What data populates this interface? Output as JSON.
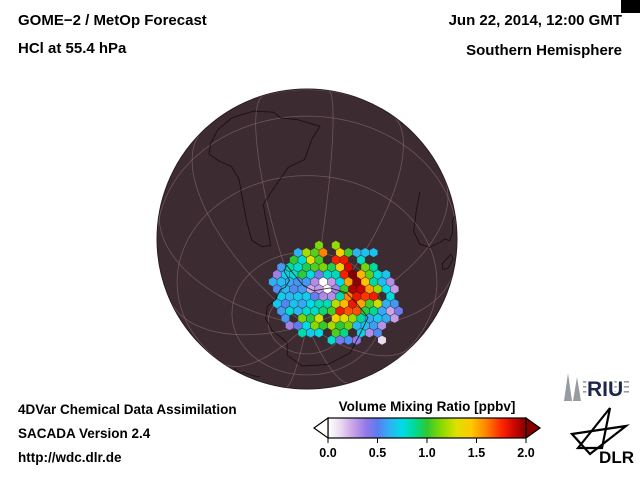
{
  "header": {
    "title_line1": "GOME−2 / MetOp Forecast",
    "title_line2": "HCl at 55.4 hPa",
    "datetime": "Jun 22, 2014, 12:00 GMT",
    "region": "Southern Hemisphere"
  },
  "footer": {
    "credit": "4DVar Chemical Data Assimilation",
    "version": "SACADA Version 2.4",
    "url": "http://wdc.dlr.de"
  },
  "colorbar": {
    "title": "Volume Mixing Ratio [ppbv]",
    "tick_labels": [
      "0.0",
      "0.5",
      "1.0",
      "1.5",
      "2.0"
    ]
  },
  "logos": {
    "riu_label": "RIU",
    "dlr_label": "DLR"
  },
  "map": {
    "background_color": "#3c2b30",
    "grid_color": "#97797f",
    "coast_color": "#17090d"
  },
  "chart_data": {
    "type": "heatmap",
    "title": "GOME−2 / MetOp Forecast — HCl at 55.4 hPa",
    "timestamp": "Jun 22, 2014, 12:00 GMT",
    "region": "Southern Hemisphere",
    "projection": "orthographic hemisphere view centered on southern high latitudes",
    "variable": "HCl volume mixing ratio",
    "units": "ppbv",
    "value_range": [
      0,
      2
    ],
    "colorbar_title": "Volume Mixing Ratio [ppbv]",
    "ticks": [
      0.0,
      0.5,
      1.0,
      1.5,
      2.0
    ],
    "legend_position": "bottom-right",
    "grid": true,
    "colorscale": [
      [
        0.0,
        "#ffffff"
      ],
      [
        0.12,
        "#ecdcf2"
      ],
      [
        0.25,
        "#c9a3e8"
      ],
      [
        0.38,
        "#9579e8"
      ],
      [
        0.5,
        "#5a7df2"
      ],
      [
        0.62,
        "#2fb1f2"
      ],
      [
        0.75,
        "#00dce6"
      ],
      [
        0.88,
        "#00d993"
      ],
      [
        1.0,
        "#2fc832"
      ],
      [
        1.15,
        "#8cd900"
      ],
      [
        1.3,
        "#e0e000"
      ],
      [
        1.45,
        "#ffc800"
      ],
      [
        1.6,
        "#ff8200"
      ],
      [
        1.75,
        "#ff2800"
      ],
      [
        1.88,
        "#cc0600"
      ],
      [
        2.0,
        "#860000"
      ]
    ],
    "features": {
      "observed_region": "cluster of hexagonal satellite footprint cells over Antarctica",
      "low_patch_ppbv": 0.1,
      "peak_arc_ppbv": 1.9,
      "typical_interior_ppbv": 1.0,
      "outer_edge_ppbv": 0.5
    }
  }
}
